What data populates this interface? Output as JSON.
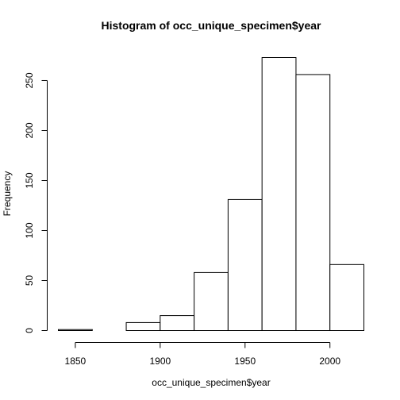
{
  "chart_data": {
    "type": "bar",
    "title": "Histogram of occ_unique_specimen$year",
    "xlabel": "occ_unique_specimen$year",
    "ylabel": "Frequency",
    "bins": [
      {
        "start": 1840,
        "end": 1860,
        "count": 1
      },
      {
        "start": 1860,
        "end": 1880,
        "count": 0
      },
      {
        "start": 1880,
        "end": 1900,
        "count": 8
      },
      {
        "start": 1900,
        "end": 1920,
        "count": 15
      },
      {
        "start": 1920,
        "end": 1940,
        "count": 58
      },
      {
        "start": 1940,
        "end": 1960,
        "count": 131
      },
      {
        "start": 1960,
        "end": 1980,
        "count": 273
      },
      {
        "start": 1980,
        "end": 2000,
        "count": 256
      },
      {
        "start": 2000,
        "end": 2020,
        "count": 66
      }
    ],
    "xlim": [
      1840,
      2020
    ],
    "ylim": [
      0,
      273
    ],
    "x_ticks": [
      1850,
      1900,
      1950,
      2000
    ],
    "y_ticks": [
      0,
      50,
      100,
      150,
      200,
      250
    ],
    "grid": false,
    "legend": "none"
  }
}
